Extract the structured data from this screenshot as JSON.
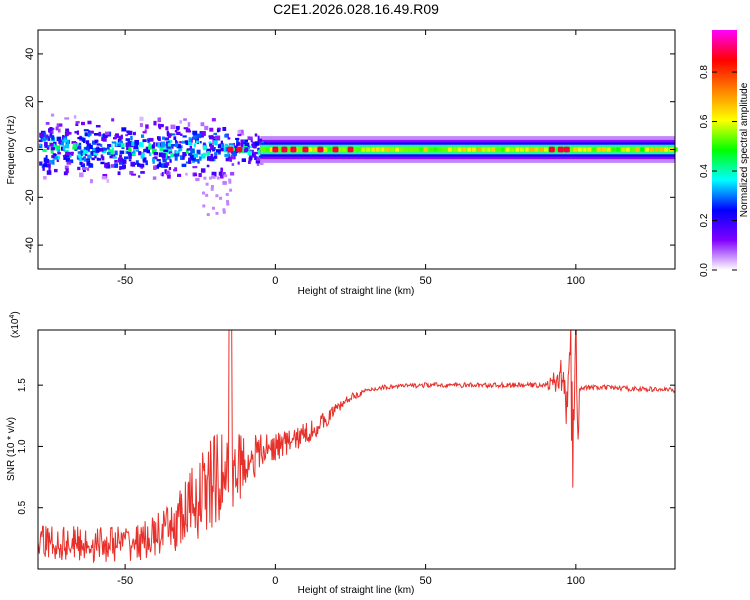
{
  "title": "C2E1.2026.028.16.49.R09",
  "chart_data": [
    {
      "type": "heatmap",
      "title": "C2E1.2026.028.16.49.R09",
      "xlabel": "Height of straight line (km)",
      "ylabel": "Frequency (Hz)",
      "xlim": [
        -79,
        133
      ],
      "ylim": [
        -50,
        50
      ],
      "xticks": [
        -50,
        0,
        50,
        100
      ],
      "yticks": [
        -40,
        -20,
        0,
        20,
        40
      ],
      "colorbar": {
        "label": "Normalized spectral amplitude",
        "range": [
          0,
          0.97
        ],
        "ticks": [
          0.0,
          0.2,
          0.4,
          0.6,
          0.8
        ],
        "tick_labels": [
          "0.0",
          "0.2",
          "0.4",
          "0.6",
          "0.8"
        ],
        "colormap": [
          "#ffffff",
          "#8000ff",
          "#0000ff",
          "#00ffff",
          "#00ff00",
          "#ffff00",
          "#ff8000",
          "#ff0000",
          "#ff00ff"
        ]
      },
      "band": {
        "center_freq_hz": 0,
        "description": "Noisy broadband scatter below ~-10 km, stable narrow band centred on 0 Hz above ~0 km",
        "half_width_hz_stable": 4,
        "peak_heights_km": [
          -15,
          -12,
          0,
          3,
          6,
          10,
          15,
          20,
          25,
          92,
          95,
          97
        ]
      }
    },
    {
      "type": "line",
      "xlabel": "Height of straight line (km)",
      "ylabel": "SNR (10 * v/v)",
      "y_multiplier_label": "(x10",
      "y_multiplier_exp": "4",
      "y_multiplier_close": ")",
      "xlim": [
        -79,
        133
      ],
      "ylim": [
        0,
        1.95
      ],
      "xticks": [
        -50,
        0,
        50,
        100
      ],
      "yticks": [
        0.5,
        1.0,
        1.5
      ],
      "ytick_labels": [
        "0.5",
        "1.0",
        "1.5"
      ],
      "series": [
        {
          "name": "SNR",
          "color": "#e8302a",
          "x": [
            -79,
            -60,
            -45,
            -35,
            -30,
            -25,
            -20,
            -15,
            -10,
            -5,
            0,
            5,
            10,
            15,
            20,
            25,
            30,
            35,
            40,
            50,
            60,
            70,
            80,
            90,
            93,
            95,
            97,
            98,
            99,
            100,
            101,
            105,
            110,
            120,
            133
          ],
          "y": [
            0.22,
            0.2,
            0.22,
            0.32,
            0.45,
            0.6,
            0.72,
            0.8,
            0.88,
            0.95,
            1.0,
            1.04,
            1.1,
            1.18,
            1.3,
            1.4,
            1.45,
            1.48,
            1.49,
            1.5,
            1.5,
            1.5,
            1.5,
            1.5,
            1.52,
            1.6,
            1.3,
            1.85,
            0.95,
            1.55,
            1.48,
            1.48,
            1.48,
            1.47,
            1.46
          ],
          "amplitude_noise": [
            0.15,
            0.15,
            0.15,
            0.2,
            0.3,
            0.35,
            0.4,
            0.35,
            0.25,
            0.15,
            0.12,
            0.1,
            0.1,
            0.08,
            0.05,
            0.03,
            0.02,
            0.02,
            0.02,
            0.02,
            0.02,
            0.02,
            0.02,
            0.02,
            0.1,
            0.15,
            0.15,
            0.05,
            0.05,
            0.05,
            0.02,
            0.02,
            0.02,
            0.02,
            0.02
          ]
        }
      ]
    }
  ]
}
